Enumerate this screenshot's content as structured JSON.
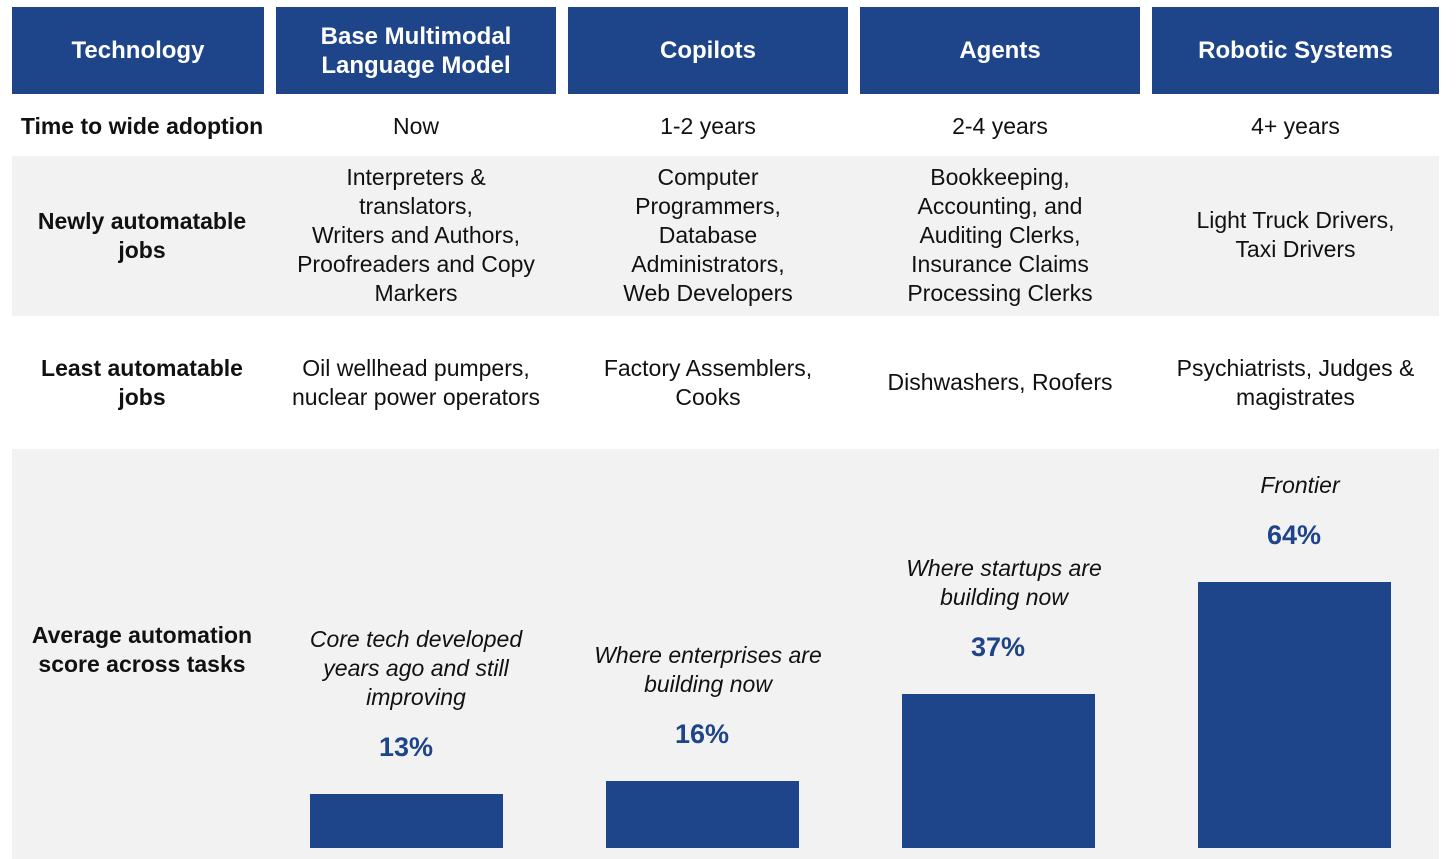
{
  "header": {
    "technology": "Technology",
    "columns": [
      "Base Multimodal\nLanguage Model",
      "Copilots",
      "Agents",
      "Robotic Systems"
    ]
  },
  "rows": {
    "adoption": {
      "label": "Time to wide adoption",
      "values": [
        "Now",
        "1-2 years",
        "2-4 years",
        "4+ years"
      ]
    },
    "newly": {
      "label": "Newly automatable\njobs",
      "values": [
        "Interpreters &\ntranslators,\nWriters and Authors,\nProofreaders and Copy\nMarkers",
        "Computer\nProgrammers,\nDatabase\nAdministrators,\nWeb Developers",
        "Bookkeeping,\nAccounting, and\nAuditing Clerks,\nInsurance Claims\nProcessing Clerks",
        "Light Truck Drivers,\nTaxi Drivers"
      ]
    },
    "least": {
      "label": "Least automatable\njobs",
      "values": [
        "Oil wellhead pumpers,\nnuclear power operators",
        "Factory Assemblers,\nCooks",
        "Dishwashers, Roofers",
        "Psychiatrists, Judges &\nmagistrates"
      ]
    },
    "score": {
      "label": "Average automation\nscore across tasks"
    }
  },
  "chart_data": {
    "type": "bar",
    "categories": [
      "Base Multimodal Language Model",
      "Copilots",
      "Agents",
      "Robotic Systems"
    ],
    "values": [
      13,
      16,
      37,
      64
    ],
    "data_labels": [
      "13%",
      "16%",
      "37%",
      "64%"
    ],
    "annotations": [
      "Core tech developed\nyears ago and still\nimproving",
      "Where enterprises are\nbuilding now",
      "Where  startups are\nbuilding now",
      "Frontier"
    ],
    "ylim": [
      0,
      64
    ],
    "colors": {
      "bar": "#1e4489",
      "header": "#1e4489",
      "band": "#f2f2f2"
    }
  }
}
